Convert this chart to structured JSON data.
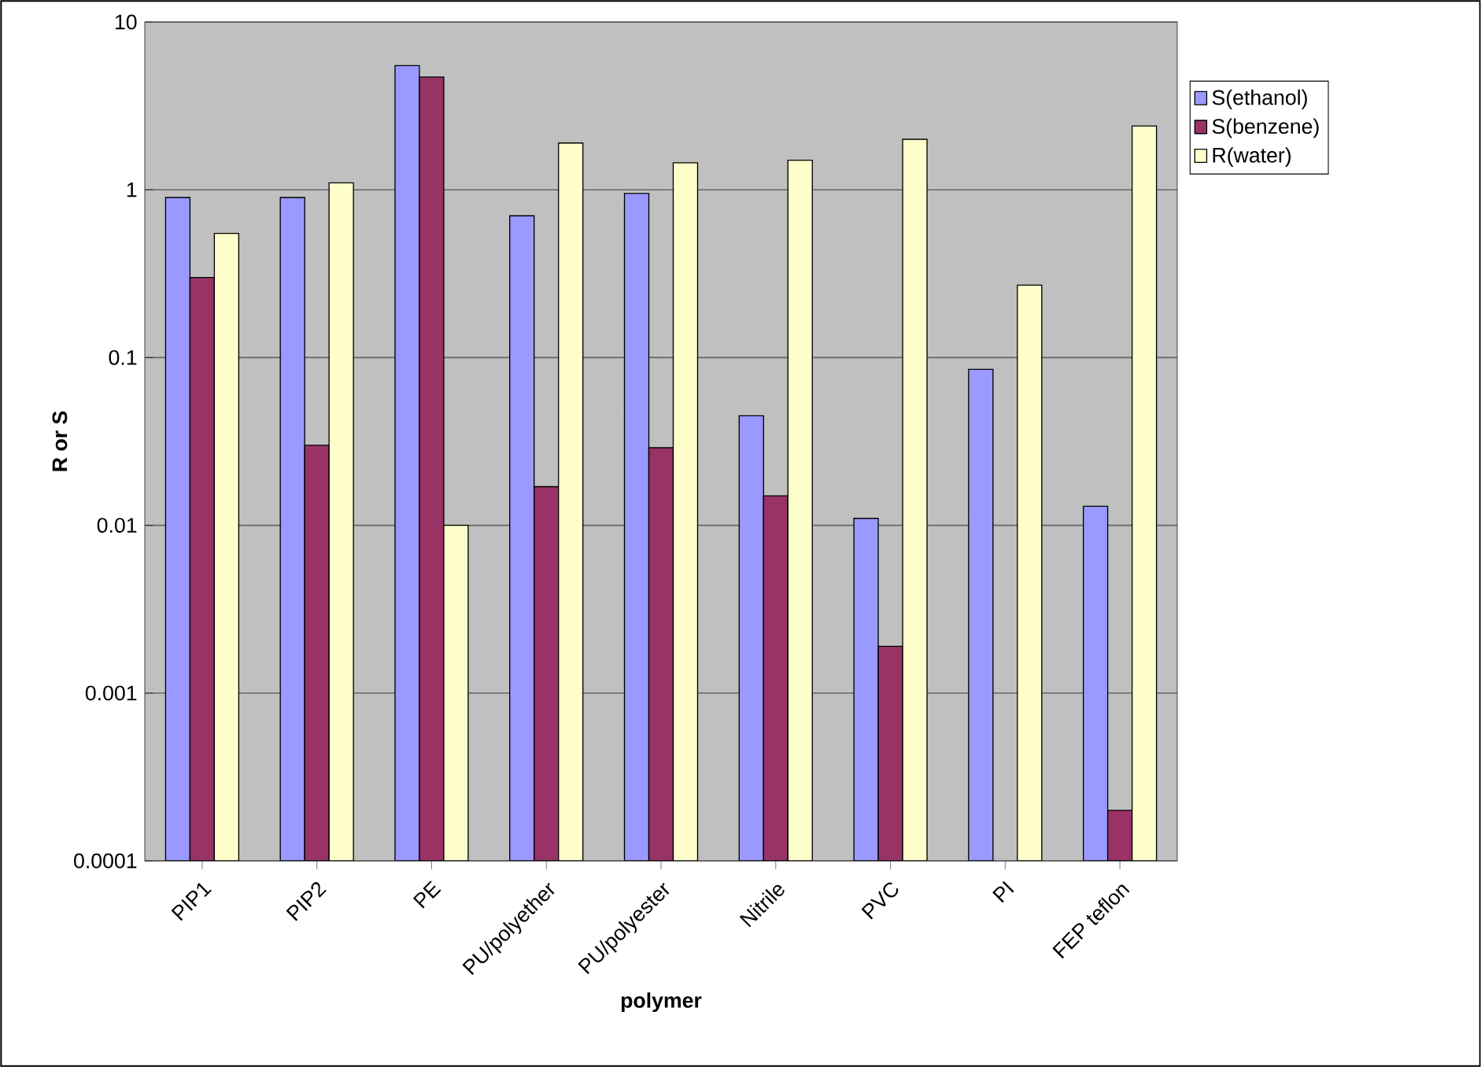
{
  "chart_data": {
    "type": "bar",
    "xlabel": "polymer",
    "ylabel": "R or S",
    "categories": [
      "PIP1",
      "PIP2",
      "PE",
      "PU/polyether",
      "PU/polyester",
      "Nitrile",
      "PVC",
      "PI",
      "FEP teflon"
    ],
    "series": [
      {
        "name": "S(ethanol)",
        "color": "#9999ff",
        "values": [
          0.9,
          0.9,
          5.5,
          0.7,
          0.95,
          0.045,
          0.011,
          0.085,
          0.013
        ]
      },
      {
        "name": "S(benzene)",
        "color": "#993366",
        "values": [
          0.3,
          0.03,
          4.7,
          0.017,
          0.029,
          0.015,
          0.0019,
          null,
          0.0002
        ]
      },
      {
        "name": "R(water)",
        "color": "#ffffcc",
        "values": [
          0.55,
          1.1,
          0.01,
          1.9,
          1.45,
          1.5,
          2.0,
          0.27,
          2.4
        ]
      }
    ],
    "log": true,
    "ylim": [
      0.0001,
      10
    ],
    "yticks": [
      0.0001,
      0.001,
      0.01,
      0.1,
      1,
      10
    ],
    "grid": "y",
    "legend": "top right"
  }
}
